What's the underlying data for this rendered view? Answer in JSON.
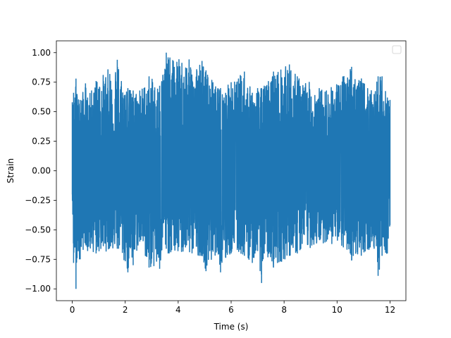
{
  "chart_data": {
    "type": "line",
    "title": "",
    "xlabel": "Time (s)",
    "ylabel": "Strain",
    "xlim": [
      -0.6,
      12.6
    ],
    "ylim": [
      -1.1,
      1.1
    ],
    "xticks": [
      0,
      2,
      4,
      6,
      8,
      10,
      12
    ],
    "xtick_labels": [
      "0",
      "2",
      "4",
      "6",
      "8",
      "10",
      "12"
    ],
    "yticks": [
      -1.0,
      -0.75,
      -0.5,
      -0.25,
      0.0,
      0.25,
      0.5,
      0.75,
      1.0
    ],
    "ytick_labels": [
      "−1.00",
      "−0.75",
      "−0.50",
      "−0.25",
      "0.00",
      "0.25",
      "0.50",
      "0.75",
      "1.00"
    ],
    "grid": false,
    "legend": {
      "position": "top-right",
      "entries": []
    },
    "series": [
      {
        "color": "#1f77b4",
        "x": [
          0.0,
          0.05,
          0.1,
          0.14,
          0.18,
          0.3,
          0.5,
          0.58,
          0.9,
          1.7,
          1.75,
          2.1,
          2.3,
          2.55,
          2.9,
          3.3,
          3.55,
          3.62,
          4.9,
          5.05,
          5.5,
          5.6,
          6.0,
          6.5,
          6.8,
          7.0,
          7.15,
          7.25,
          7.6,
          8.2,
          8.5,
          9.6,
          10.5,
          10.55,
          11.4,
          11.55,
          11.7,
          11.9,
          12.0
        ],
        "envelope_upper": [
          0.58,
          0.66,
          0.62,
          0.78,
          0.65,
          0.6,
          0.74,
          0.62,
          0.76,
          0.94,
          0.86,
          0.7,
          0.68,
          0.68,
          0.8,
          0.72,
          1.0,
          0.96,
          0.93,
          0.85,
          0.7,
          0.7,
          0.75,
          0.84,
          0.66,
          0.7,
          0.7,
          0.72,
          0.84,
          0.9,
          0.8,
          0.68,
          0.86,
          0.88,
          0.65,
          0.8,
          0.8,
          0.62,
          0.6
        ],
        "envelope_lower": [
          -0.2,
          -0.78,
          -0.65,
          -1.0,
          -0.74,
          -0.75,
          -0.62,
          -0.68,
          -0.7,
          -0.66,
          -0.66,
          -0.86,
          -0.8,
          -0.6,
          -0.82,
          -0.83,
          -0.66,
          -0.7,
          -0.72,
          -0.85,
          -0.68,
          -0.86,
          -0.7,
          -0.72,
          -0.78,
          -0.68,
          -0.95,
          -0.7,
          -0.82,
          -0.72,
          -0.7,
          -0.6,
          -0.7,
          -0.76,
          -0.66,
          -0.89,
          -0.72,
          -0.7,
          -0.46
        ]
      }
    ]
  }
}
